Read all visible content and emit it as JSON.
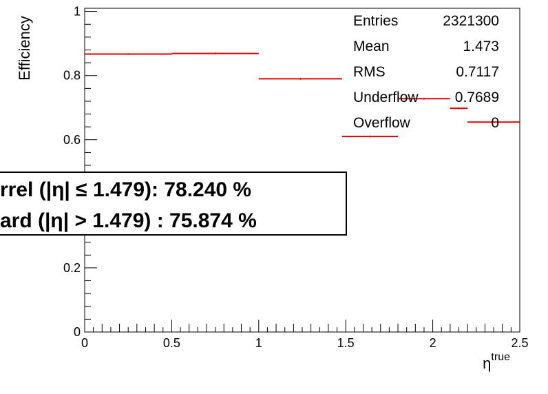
{
  "chart_data": {
    "type": "bar",
    "xlabel": "η",
    "xlabel_sup": "true",
    "ylabel": "Efficiency",
    "xlim": [
      0,
      2.5
    ],
    "ylim": [
      0,
      1.01
    ],
    "x_ticks": [
      "0",
      "0.5",
      "1",
      "1.5",
      "2",
      "2.5"
    ],
    "y_ticks": [
      "0",
      "0.2",
      "0.6",
      "0.8",
      "1"
    ],
    "series": [
      {
        "name": "efficiency",
        "color": "#e00000",
        "bins": [
          {
            "x_low": 0.0,
            "x_high": 0.5,
            "value": 0.867
          },
          {
            "x_low": 0.5,
            "x_high": 1.0,
            "value": 0.869
          },
          {
            "x_low": 1.0,
            "x_high": 1.479,
            "value": 0.79
          },
          {
            "x_low": 1.479,
            "x_high": 1.8,
            "value": 0.61
          },
          {
            "x_low": 1.8,
            "x_high": 2.1,
            "value": 0.728
          },
          {
            "x_low": 2.1,
            "x_high": 2.2,
            "value": 0.698
          },
          {
            "x_low": 2.2,
            "x_high": 2.5,
            "value": 0.655
          }
        ]
      }
    ],
    "stats": [
      {
        "label": "Entries",
        "value": "2321300"
      },
      {
        "label": "Mean",
        "value": "1.473"
      },
      {
        "label": "RMS",
        "value": "0.7117"
      },
      {
        "label": "Underflow",
        "value": "0.7689"
      },
      {
        "label": "Overflow",
        "value": "0"
      }
    ],
    "annotations": [
      {
        "text": "rrel (|η| ≤ 1.479): 78.240 %"
      },
      {
        "text": "ard (|η| > 1.479) : 75.874 %"
      }
    ]
  }
}
